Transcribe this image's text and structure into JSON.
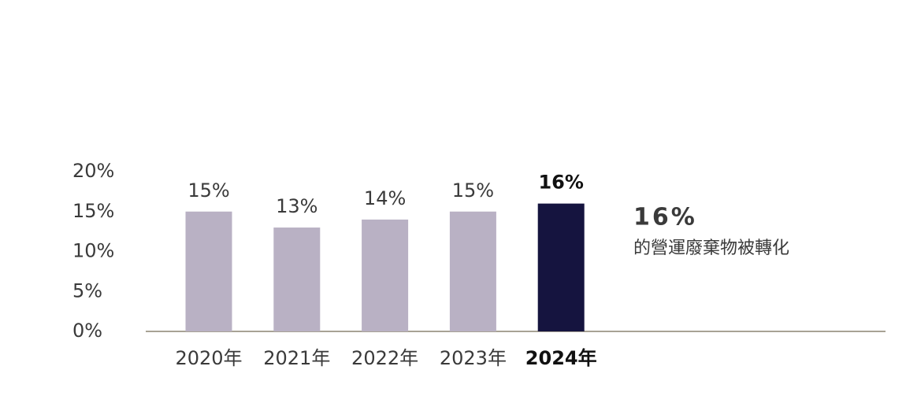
{
  "chart_data": {
    "type": "bar",
    "categories": [
      "2020年",
      "2021年",
      "2022年",
      "2023年",
      "2024年"
    ],
    "values": [
      15,
      13,
      14,
      15,
      16
    ],
    "value_labels": [
      "15%",
      "13%",
      "14%",
      "15%",
      "16%"
    ],
    "colors": [
      "#b9b1c4",
      "#b9b1c4",
      "#b9b1c4",
      "#b9b1c4",
      "#15143f"
    ],
    "ylim": [
      0,
      20
    ],
    "yticks": [
      {
        "value": 0,
        "label": "0%"
      },
      {
        "value": 5,
        "label": "5%"
      },
      {
        "value": 10,
        "label": "10%"
      },
      {
        "value": 15,
        "label": "15%"
      },
      {
        "value": 20,
        "label": "20%"
      }
    ],
    "grid": false,
    "annotation": {
      "value": "16%",
      "text": "的營運廢棄物被轉化"
    }
  }
}
